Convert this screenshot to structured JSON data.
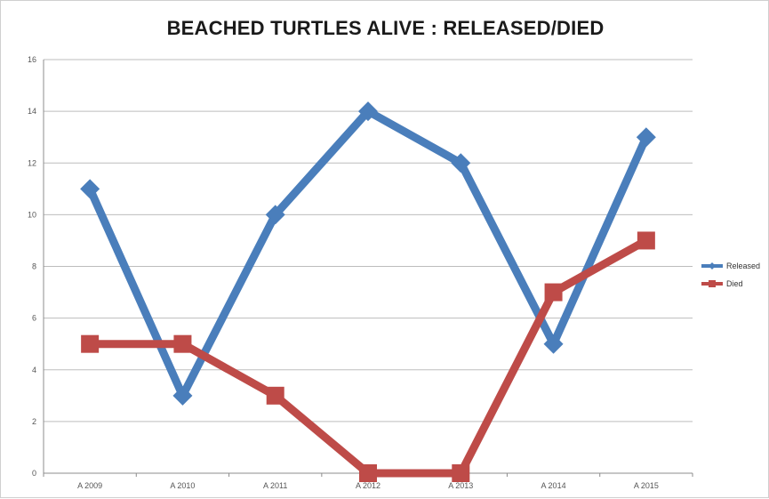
{
  "chart_data": {
    "type": "line",
    "title": "BEACHED TURTLES ALIVE :  RELEASED/DIED",
    "xlabel": "",
    "ylabel": "",
    "categories": [
      "A 2009",
      "A 2010",
      "A 2011",
      "A 2012",
      "A 2013",
      "A 2014",
      "A 2015"
    ],
    "ylim": [
      0,
      16
    ],
    "yticks": [
      "0",
      "2",
      "4",
      "6",
      "8",
      "10",
      "12",
      "14",
      "16"
    ],
    "grid": true,
    "legend_position": "right",
    "series": [
      {
        "name": "Released",
        "color": "#4a7ebb",
        "marker": "diamond",
        "values": [
          11,
          3,
          10,
          14,
          12,
          5,
          13
        ]
      },
      {
        "name": "Died",
        "color": "#be4b48",
        "marker": "square",
        "values": [
          5,
          5,
          3,
          0,
          0,
          7,
          9
        ]
      }
    ]
  }
}
